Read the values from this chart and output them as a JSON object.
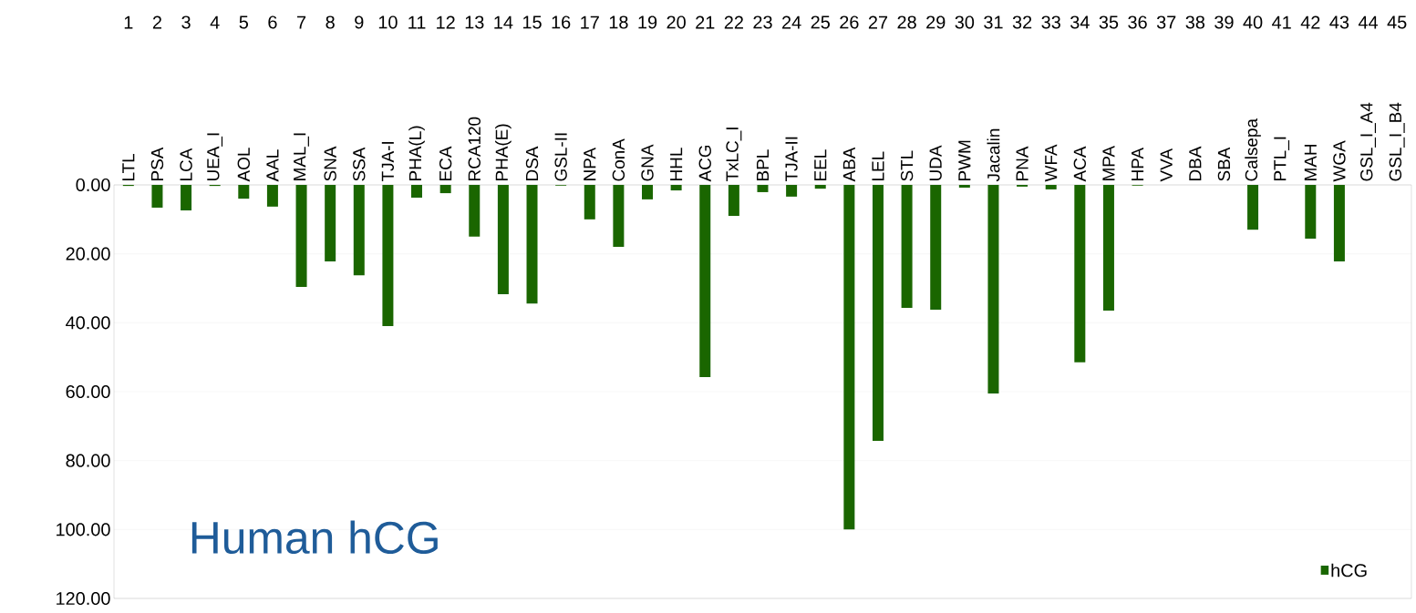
{
  "chart_data": {
    "type": "bar",
    "title": "Human hCG",
    "categories": [
      "LTL",
      "PSA",
      "LCA",
      "UEA_I",
      "AOL",
      "AAL",
      "MAL_I",
      "SNA",
      "SSA",
      "TJA-I",
      "PHA(L)",
      "ECA",
      "RCA120",
      "PHA(E)",
      "DSA",
      "GSL-II",
      "NPA",
      "ConA",
      "GNA",
      "HHL",
      "ACG",
      "TxLC_I",
      "BPL",
      "TJA-II",
      "EEL",
      "ABA",
      "LEL",
      "STL",
      "UDA",
      "PWM",
      "Jacalin",
      "PNA",
      "WFA",
      "ACA",
      "MPA",
      "HPA",
      "VVA",
      "DBA",
      "SBA",
      "Calsepa",
      "PTL_I",
      "MAH",
      "WGA",
      "GSL_I_A4",
      "GSL_I_B4"
    ],
    "series": [
      {
        "name": "hCG",
        "color": "#1a6600",
        "values": [
          0.3,
          6.6,
          7.4,
          0.3,
          4,
          6.3,
          29.6,
          22.2,
          26.2,
          41,
          3.7,
          2.4,
          15,
          31.7,
          34.4,
          0.2,
          10,
          18,
          4.2,
          1.6,
          55.8,
          9,
          2.1,
          3.4,
          1.1,
          100,
          74.3,
          35.7,
          36.2,
          0.8,
          60.5,
          0.5,
          1.3,
          51.5,
          36.5,
          0.2,
          0,
          0,
          0,
          13,
          0,
          15.6,
          22.2,
          0,
          0
        ]
      }
    ],
    "ylim": [
      120,
      0
    ],
    "yticks": [
      {
        "value": 0,
        "label": "0.00"
      },
      {
        "value": 20,
        "label": "20.00"
      },
      {
        "value": 40,
        "label": "40.00"
      },
      {
        "value": 60,
        "label": "60.00"
      },
      {
        "value": 80,
        "label": "80.00"
      },
      {
        "value": 100,
        "label": "100.00"
      },
      {
        "value": 120,
        "label": "120.00"
      }
    ],
    "grid": "y",
    "legend": "bottom right",
    "annotations": [
      "1",
      "2",
      "3",
      "4",
      "5",
      "6",
      "7",
      "8",
      "9",
      "10",
      "11",
      "12",
      "13",
      "14",
      "15",
      "16",
      "17",
      "18",
      "19",
      "20",
      "21",
      "22",
      "23",
      "24",
      "25",
      "26",
      "27",
      "28",
      "29",
      "30",
      "31",
      "32",
      "33",
      "34",
      "35",
      "36",
      "37",
      "38",
      "39",
      "40",
      "41",
      "42",
      "43",
      "44",
      "45"
    ]
  }
}
